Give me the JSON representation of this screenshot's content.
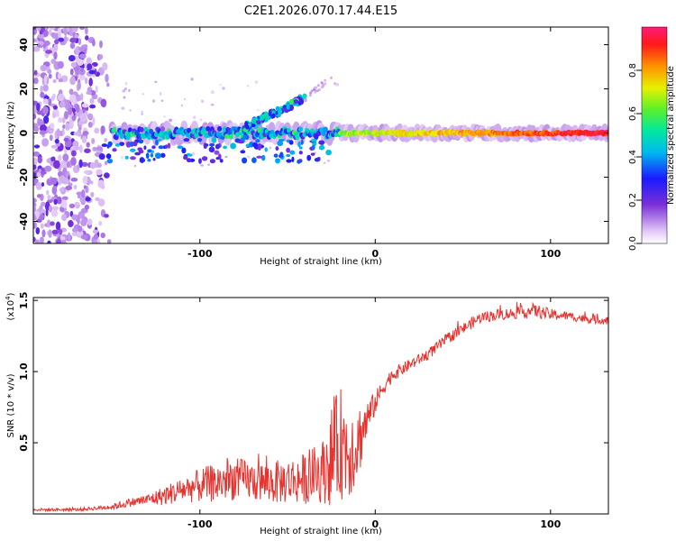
{
  "title": "C2E1.2026.070.17.44.E15",
  "chart_data": [
    {
      "type": "heatmap",
      "title": "C2E1.2026.070.17.44.E15",
      "xlabel": "Height of straight line (km)",
      "ylabel": "Frequency (Hz)",
      "xlim": [
        -195,
        133
      ],
      "ylim": [
        -50,
        48
      ],
      "xticks": [
        -100,
        0,
        100
      ],
      "xtick_labels": [
        "-100",
        "0",
        "100"
      ],
      "yticks": [
        -40,
        -20,
        0,
        20,
        40
      ],
      "ytick_labels": [
        "-40",
        "-20",
        "0",
        "20",
        "40"
      ],
      "colorbar": {
        "label": "Normalized spectral amplitude",
        "range": [
          0,
          1
        ],
        "ticks": [
          0.0,
          0.2,
          0.4,
          0.6,
          0.8
        ],
        "tick_labels": [
          "0.0",
          "0.2",
          "0.4",
          "0.6",
          "0.8"
        ]
      },
      "features": {
        "main_line": {
          "x": [
            -150,
            133
          ],
          "freq_hz": 0,
          "amplitude_start": 0.3,
          "amplitude_end": 0.95
        },
        "branch_upper": {
          "x": [
            -75,
            -40
          ],
          "freq_hz": [
            2,
            16
          ]
        },
        "noise_region_x": [
          -195,
          -150
        ]
      }
    },
    {
      "type": "line",
      "xlabel": "Height of straight line (km)",
      "ylabel": "SNR (10 * v/v)",
      "scale_label": "(x10",
      "scale_exponent": "4",
      "xlim": [
        -195,
        133
      ],
      "ylim": [
        0,
        1.52
      ],
      "xticks": [
        -100,
        0,
        100
      ],
      "xtick_labels": [
        "-100",
        "0",
        "100"
      ],
      "yticks": [
        0.5,
        1.0,
        1.5
      ],
      "ytick_labels": [
        "0.5",
        "1.0",
        "1.5"
      ],
      "color": "#e8322e",
      "series": [
        {
          "name": "SNR",
          "x": [
            -195,
            -170,
            -150,
            -140,
            -130,
            -120,
            -110,
            -100,
            -90,
            -80,
            -70,
            -60,
            -50,
            -40,
            -30,
            -25,
            -20,
            -15,
            -10,
            -5,
            0,
            5,
            10,
            20,
            30,
            40,
            50,
            60,
            70,
            80,
            90,
            100,
            110,
            120,
            133
          ],
          "y": [
            0.03,
            0.03,
            0.05,
            0.08,
            0.1,
            0.13,
            0.17,
            0.2,
            0.22,
            0.25,
            0.23,
            0.22,
            0.23,
            0.25,
            0.3,
            0.4,
            0.5,
            0.45,
            0.5,
            0.65,
            0.78,
            0.9,
            0.98,
            1.05,
            1.12,
            1.22,
            1.3,
            1.38,
            1.4,
            1.41,
            1.43,
            1.4,
            1.39,
            1.37,
            1.36
          ],
          "noise": [
            0.01,
            0.01,
            0.02,
            0.03,
            0.04,
            0.07,
            0.09,
            0.12,
            0.14,
            0.15,
            0.14,
            0.15,
            0.16,
            0.18,
            0.22,
            0.35,
            0.4,
            0.35,
            0.28,
            0.15,
            0.08,
            0.06,
            0.05,
            0.04,
            0.04,
            0.04,
            0.04,
            0.04,
            0.04,
            0.04,
            0.05,
            0.04,
            0.03,
            0.03,
            0.03
          ]
        }
      ]
    }
  ]
}
